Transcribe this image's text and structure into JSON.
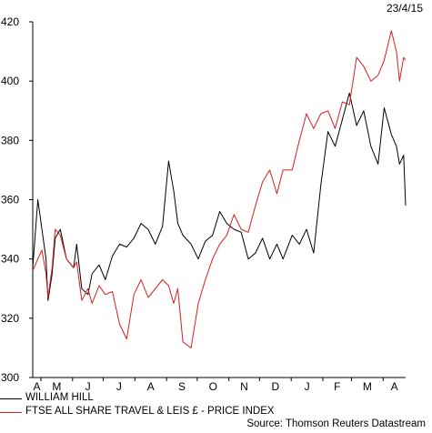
{
  "chart_data": {
    "type": "line",
    "date": "23/4/15",
    "source": "Source: Thomson Reuters Datastream",
    "ylim": [
      300,
      420
    ],
    "yticks": [
      300,
      320,
      340,
      360,
      380,
      400,
      420
    ],
    "xticklabels": [
      "A",
      "M",
      "J",
      "J",
      "A",
      "S",
      "O",
      "N",
      "D",
      "J",
      "F",
      "M",
      "A"
    ],
    "xrange": [
      "2014-04-23",
      "2015-04-23"
    ],
    "grid": false,
    "legend_position": "bottom-left",
    "series": [
      {
        "name": "WILLIAM HILL",
        "color": "#000000",
        "x": [
          "2014-04-23",
          "2014-04-28",
          "2014-05-02",
          "2014-05-06",
          "2014-05-08",
          "2014-05-12",
          "2014-05-15",
          "2014-05-20",
          "2014-05-26",
          "2014-06-02",
          "2014-06-05",
          "2014-06-10",
          "2014-06-16",
          "2014-06-20",
          "2014-06-27",
          "2014-07-03",
          "2014-07-10",
          "2014-07-17",
          "2014-07-24",
          "2014-07-31",
          "2014-08-07",
          "2014-08-14",
          "2014-08-21",
          "2014-08-28",
          "2014-09-03",
          "2014-09-08",
          "2014-09-12",
          "2014-09-17",
          "2014-09-25",
          "2014-10-02",
          "2014-10-09",
          "2014-10-16",
          "2014-10-23",
          "2014-10-30",
          "2014-11-06",
          "2014-11-13",
          "2014-11-20",
          "2014-11-27",
          "2014-12-04",
          "2014-12-11",
          "2014-12-18",
          "2014-12-24",
          "2015-01-02",
          "2015-01-09",
          "2015-01-16",
          "2015-01-23",
          "2015-01-30",
          "2015-02-06",
          "2015-02-13",
          "2015-02-20",
          "2015-02-27",
          "2015-03-06",
          "2015-03-13",
          "2015-03-20",
          "2015-03-27",
          "2015-04-02",
          "2015-04-09",
          "2015-04-14",
          "2015-04-17",
          "2015-04-21",
          "2015-04-23"
        ],
        "y": [
          337,
          360,
          350,
          340,
          326,
          335,
          347,
          350,
          340,
          337,
          345,
          330,
          328,
          335,
          338,
          333,
          341,
          345,
          344,
          347,
          352,
          350,
          345,
          351,
          373,
          363,
          352,
          348,
          345,
          340,
          346,
          348,
          356,
          352,
          350,
          349,
          340,
          342,
          347,
          340,
          345,
          340,
          348,
          345,
          350,
          342,
          365,
          383,
          378,
          387,
          396,
          385,
          390,
          378,
          372,
          391,
          382,
          378,
          372,
          375,
          358
        ]
      },
      {
        "name": "FTSE ALL SHARE TRAVEL & LEIS £ - PRICE INDEX",
        "color": "#d81e1e",
        "x": [
          "2014-04-23",
          "2014-04-28",
          "2014-05-02",
          "2014-05-06",
          "2014-05-08",
          "2014-05-12",
          "2014-05-15",
          "2014-05-20",
          "2014-05-26",
          "2014-06-02",
          "2014-06-05",
          "2014-06-10",
          "2014-06-16",
          "2014-06-20",
          "2014-06-27",
          "2014-07-03",
          "2014-07-10",
          "2014-07-17",
          "2014-07-24",
          "2014-07-31",
          "2014-08-07",
          "2014-08-14",
          "2014-08-21",
          "2014-08-28",
          "2014-09-03",
          "2014-09-08",
          "2014-09-12",
          "2014-09-17",
          "2014-09-25",
          "2014-10-02",
          "2014-10-09",
          "2014-10-16",
          "2014-10-23",
          "2014-10-30",
          "2014-11-06",
          "2014-11-13",
          "2014-11-20",
          "2014-11-27",
          "2014-12-04",
          "2014-12-11",
          "2014-12-18",
          "2014-12-24",
          "2015-01-02",
          "2015-01-09",
          "2015-01-16",
          "2015-01-23",
          "2015-01-30",
          "2015-02-06",
          "2015-02-13",
          "2015-02-20",
          "2015-02-27",
          "2015-03-06",
          "2015-03-13",
          "2015-03-20",
          "2015-03-27",
          "2015-04-02",
          "2015-04-09",
          "2015-04-14",
          "2015-04-17",
          "2015-04-21",
          "2015-04-23"
        ],
        "y": [
          336,
          340,
          343,
          335,
          327,
          337,
          350,
          348,
          340,
          337,
          339,
          326,
          330,
          325,
          331,
          328,
          329,
          318,
          313,
          328,
          333,
          327,
          330,
          333,
          331,
          325,
          330,
          312,
          310,
          325,
          333,
          340,
          345,
          348,
          355,
          350,
          349,
          358,
          366,
          370,
          362,
          370,
          370,
          380,
          389,
          384,
          389,
          390,
          384,
          393,
          392,
          408,
          405,
          400,
          402,
          407,
          417,
          410,
          400,
          408,
          407
        ]
      }
    ]
  }
}
